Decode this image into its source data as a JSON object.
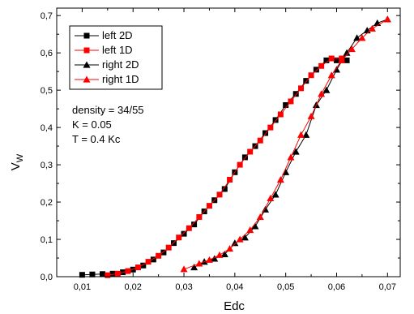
{
  "chart_data": {
    "type": "line",
    "xlabel": "Edc",
    "ylabel_main": "V",
    "ylabel_sub": "W",
    "xlim": [
      0.005,
      0.0725
    ],
    "ylim": [
      0.0,
      0.72
    ],
    "x_ticks": [
      0.01,
      0.02,
      0.03,
      0.04,
      0.05,
      0.06,
      0.07
    ],
    "x_tick_labels": [
      "0,01",
      "0,02",
      "0,03",
      "0,04",
      "0,05",
      "0,06",
      "0,07"
    ],
    "y_ticks": [
      0.0,
      0.1,
      0.2,
      0.3,
      0.4,
      0.5,
      0.6,
      0.7
    ],
    "y_tick_labels": [
      "0,0",
      "0,1",
      "0,2",
      "0,3",
      "0,4",
      "0,5",
      "0,6",
      "0,7"
    ],
    "legend_position": "top-left",
    "annotations": [
      "density = 34/55",
      "K = 0.05",
      "T = 0.4 Kc"
    ],
    "series": [
      {
        "name": "left 2D",
        "color": "#000000",
        "marker": "square",
        "x": [
          0.01,
          0.012,
          0.014,
          0.016,
          0.018,
          0.02,
          0.022,
          0.024,
          0.026,
          0.028,
          0.03,
          0.032,
          0.034,
          0.036,
          0.038,
          0.04,
          0.042,
          0.044,
          0.046,
          0.048,
          0.05,
          0.052,
          0.054,
          0.056,
          0.058,
          0.06,
          0.062
        ],
        "y": [
          0.005,
          0.006,
          0.007,
          0.008,
          0.012,
          0.019,
          0.03,
          0.046,
          0.065,
          0.09,
          0.115,
          0.14,
          0.175,
          0.205,
          0.235,
          0.28,
          0.32,
          0.35,
          0.385,
          0.42,
          0.46,
          0.49,
          0.525,
          0.555,
          0.58,
          0.58,
          0.58
        ]
      },
      {
        "name": "left 1D",
        "color": "#ff0000",
        "marker": "square",
        "x": [
          0.015,
          0.017,
          0.019,
          0.021,
          0.023,
          0.025,
          0.027,
          0.029,
          0.031,
          0.033,
          0.035,
          0.037,
          0.039,
          0.041,
          0.043,
          0.045,
          0.047,
          0.049,
          0.051,
          0.053,
          0.055,
          0.057,
          0.059,
          0.061
        ],
        "y": [
          0.004,
          0.008,
          0.015,
          0.025,
          0.04,
          0.056,
          0.078,
          0.105,
          0.13,
          0.16,
          0.19,
          0.22,
          0.26,
          0.3,
          0.335,
          0.365,
          0.4,
          0.435,
          0.47,
          0.505,
          0.54,
          0.565,
          0.585,
          0.585
        ]
      },
      {
        "name": "right 2D",
        "color": "#000000",
        "marker": "triangle",
        "x": [
          0.032,
          0.034,
          0.036,
          0.038,
          0.04,
          0.042,
          0.044,
          0.046,
          0.048,
          0.05,
          0.052,
          0.054,
          0.056,
          0.058,
          0.06,
          0.062,
          0.064,
          0.066,
          0.068,
          0.07
        ],
        "y": [
          0.025,
          0.04,
          0.048,
          0.06,
          0.09,
          0.105,
          0.135,
          0.18,
          0.22,
          0.28,
          0.335,
          0.38,
          0.46,
          0.5,
          0.555,
          0.6,
          0.64,
          0.66,
          0.68,
          0.69
        ]
      },
      {
        "name": "right 1D",
        "color": "#ff0000",
        "marker": "triangle",
        "x": [
          0.03,
          0.033,
          0.035,
          0.037,
          0.039,
          0.041,
          0.043,
          0.045,
          0.047,
          0.049,
          0.051,
          0.053,
          0.055,
          0.057,
          0.059,
          0.061,
          0.063,
          0.065,
          0.067,
          0.07
        ],
        "y": [
          0.02,
          0.035,
          0.045,
          0.058,
          0.075,
          0.1,
          0.125,
          0.16,
          0.21,
          0.26,
          0.32,
          0.38,
          0.43,
          0.49,
          0.54,
          0.58,
          0.61,
          0.64,
          0.665,
          0.69
        ]
      }
    ]
  }
}
